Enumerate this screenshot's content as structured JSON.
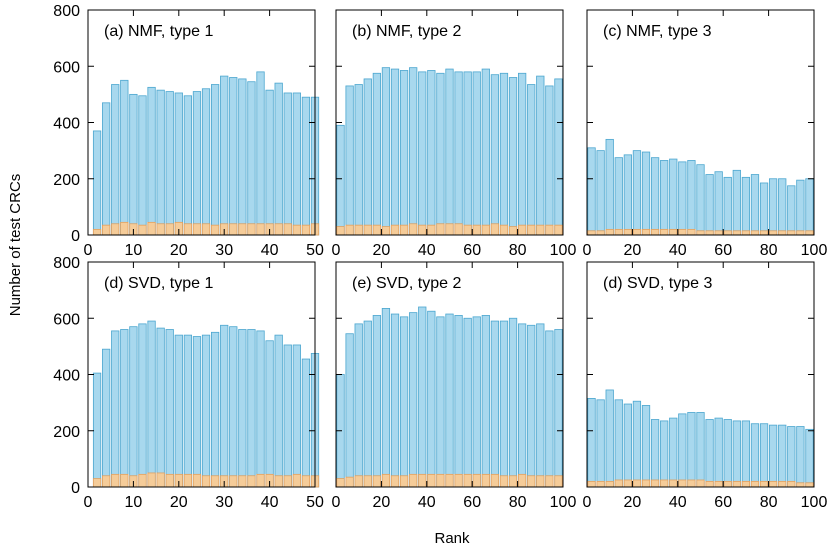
{
  "figure": {
    "ylabel": "Number of test CRCs",
    "xlabel": "Rank"
  },
  "colors": {
    "blue_fill": "#a8d8ee",
    "blue_edge": "#4ba6cf",
    "orange_fill": "#f5cc99",
    "orange_edge": "#e0a060"
  },
  "chart_data": [
    {
      "type": "bar",
      "title": "(a) NMF, type 1",
      "x": [
        2,
        4,
        6,
        8,
        10,
        12,
        14,
        16,
        18,
        20,
        22,
        24,
        26,
        28,
        30,
        32,
        34,
        36,
        38,
        40,
        42,
        44,
        46,
        48,
        50
      ],
      "series": [
        {
          "values": [
            370,
            470,
            535,
            550,
            500,
            495,
            525,
            515,
            510,
            505,
            495,
            510,
            520,
            535,
            565,
            560,
            555,
            545,
            580,
            515,
            540,
            505,
            505,
            490,
            490
          ]
        },
        {
          "values": [
            20,
            35,
            40,
            45,
            40,
            35,
            45,
            40,
            40,
            45,
            40,
            40,
            40,
            35,
            40,
            40,
            40,
            40,
            40,
            40,
            40,
            40,
            35,
            35,
            40
          ]
        }
      ],
      "xlim": [
        0,
        50
      ],
      "ylim": [
        0,
        800
      ],
      "xticks": [
        0,
        10,
        20,
        30,
        40,
        50
      ],
      "yticks": [
        0,
        200,
        400,
        600,
        800
      ]
    },
    {
      "type": "bar",
      "title": "(b) NMF, type 2",
      "x": [
        2,
        6,
        10,
        14,
        18,
        22,
        26,
        30,
        34,
        38,
        42,
        46,
        50,
        54,
        58,
        62,
        66,
        70,
        74,
        78,
        82,
        86,
        90,
        94,
        98
      ],
      "series": [
        {
          "values": [
            390,
            530,
            535,
            555,
            575,
            595,
            590,
            585,
            595,
            580,
            585,
            575,
            590,
            580,
            580,
            580,
            590,
            570,
            575,
            560,
            575,
            535,
            565,
            530,
            555
          ]
        },
        {
          "values": [
            30,
            35,
            35,
            35,
            35,
            30,
            35,
            35,
            40,
            35,
            35,
            40,
            40,
            40,
            35,
            35,
            35,
            40,
            35,
            30,
            35,
            35,
            35,
            35,
            35
          ]
        }
      ],
      "xlim": [
        0,
        100
      ],
      "ylim": [
        0,
        800
      ],
      "xticks": [
        0,
        20,
        40,
        60,
        80,
        100
      ],
      "yticks": [
        0,
        200,
        400,
        600,
        800
      ]
    },
    {
      "type": "bar",
      "title": "(c) NMF, type 3",
      "x": [
        2,
        6,
        10,
        14,
        18,
        22,
        26,
        30,
        34,
        38,
        42,
        46,
        50,
        54,
        58,
        62,
        66,
        70,
        74,
        78,
        82,
        86,
        90,
        94,
        98
      ],
      "series": [
        {
          "values": [
            310,
            300,
            340,
            275,
            285,
            300,
            295,
            275,
            265,
            270,
            260,
            265,
            250,
            215,
            225,
            205,
            230,
            205,
            215,
            185,
            200,
            200,
            175,
            195,
            200
          ]
        },
        {
          "values": [
            15,
            15,
            20,
            20,
            20,
            20,
            20,
            20,
            20,
            20,
            20,
            20,
            15,
            15,
            15,
            15,
            15,
            15,
            15,
            15,
            15,
            15,
            15,
            15,
            15
          ]
        }
      ],
      "xlim": [
        0,
        100
      ],
      "ylim": [
        0,
        800
      ],
      "xticks": [
        0,
        20,
        40,
        60,
        80,
        100
      ],
      "yticks": [
        0,
        200,
        400,
        600,
        800
      ]
    },
    {
      "type": "bar",
      "title": "(d) SVD, type 1",
      "x": [
        2,
        4,
        6,
        8,
        10,
        12,
        14,
        16,
        18,
        20,
        22,
        24,
        26,
        28,
        30,
        32,
        34,
        36,
        38,
        40,
        42,
        44,
        46,
        48,
        50
      ],
      "series": [
        {
          "values": [
            405,
            490,
            555,
            560,
            570,
            580,
            590,
            565,
            560,
            540,
            540,
            535,
            540,
            550,
            575,
            570,
            560,
            560,
            555,
            520,
            540,
            505,
            505,
            455,
            475
          ]
        },
        {
          "values": [
            30,
            40,
            45,
            45,
            40,
            45,
            50,
            50,
            45,
            45,
            45,
            45,
            40,
            40,
            40,
            40,
            40,
            40,
            45,
            45,
            40,
            40,
            45,
            40,
            40
          ]
        }
      ],
      "xlim": [
        0,
        50
      ],
      "ylim": [
        0,
        800
      ],
      "xticks": [
        0,
        10,
        20,
        30,
        40,
        50
      ],
      "yticks": [
        0,
        200,
        400,
        600,
        800
      ]
    },
    {
      "type": "bar",
      "title": "(e) SVD, type 2",
      "x": [
        2,
        6,
        10,
        14,
        18,
        22,
        26,
        30,
        34,
        38,
        42,
        46,
        50,
        54,
        58,
        62,
        66,
        70,
        74,
        78,
        82,
        86,
        90,
        94,
        98
      ],
      "series": [
        {
          "values": [
            400,
            545,
            580,
            590,
            610,
            635,
            615,
            605,
            620,
            640,
            625,
            605,
            615,
            610,
            600,
            605,
            610,
            590,
            590,
            600,
            580,
            575,
            580,
            555,
            560
          ]
        },
        {
          "values": [
            30,
            35,
            40,
            40,
            40,
            45,
            40,
            40,
            45,
            45,
            45,
            45,
            45,
            45,
            45,
            45,
            45,
            45,
            40,
            40,
            45,
            40,
            40,
            40,
            40
          ]
        }
      ],
      "xlim": [
        0,
        100
      ],
      "ylim": [
        0,
        800
      ],
      "xticks": [
        0,
        20,
        40,
        60,
        80,
        100
      ],
      "yticks": [
        0,
        200,
        400,
        600,
        800
      ]
    },
    {
      "type": "bar",
      "title": "(d) SVD, type 3",
      "x": [
        2,
        6,
        10,
        14,
        18,
        22,
        26,
        30,
        34,
        38,
        42,
        46,
        50,
        54,
        58,
        62,
        66,
        70,
        74,
        78,
        82,
        86,
        90,
        94,
        98
      ],
      "series": [
        {
          "values": [
            315,
            310,
            345,
            310,
            295,
            305,
            290,
            240,
            235,
            245,
            260,
            265,
            265,
            240,
            245,
            240,
            235,
            235,
            225,
            225,
            220,
            220,
            215,
            215,
            205
          ]
        },
        {
          "values": [
            20,
            20,
            20,
            25,
            25,
            25,
            25,
            25,
            25,
            25,
            25,
            25,
            25,
            20,
            20,
            20,
            20,
            20,
            20,
            20,
            20,
            20,
            20,
            15,
            15
          ]
        }
      ],
      "xlim": [
        0,
        100
      ],
      "ylim": [
        0,
        800
      ],
      "xticks": [
        0,
        20,
        40,
        60,
        80,
        100
      ],
      "yticks": [
        0,
        200,
        400,
        600,
        800
      ]
    }
  ]
}
